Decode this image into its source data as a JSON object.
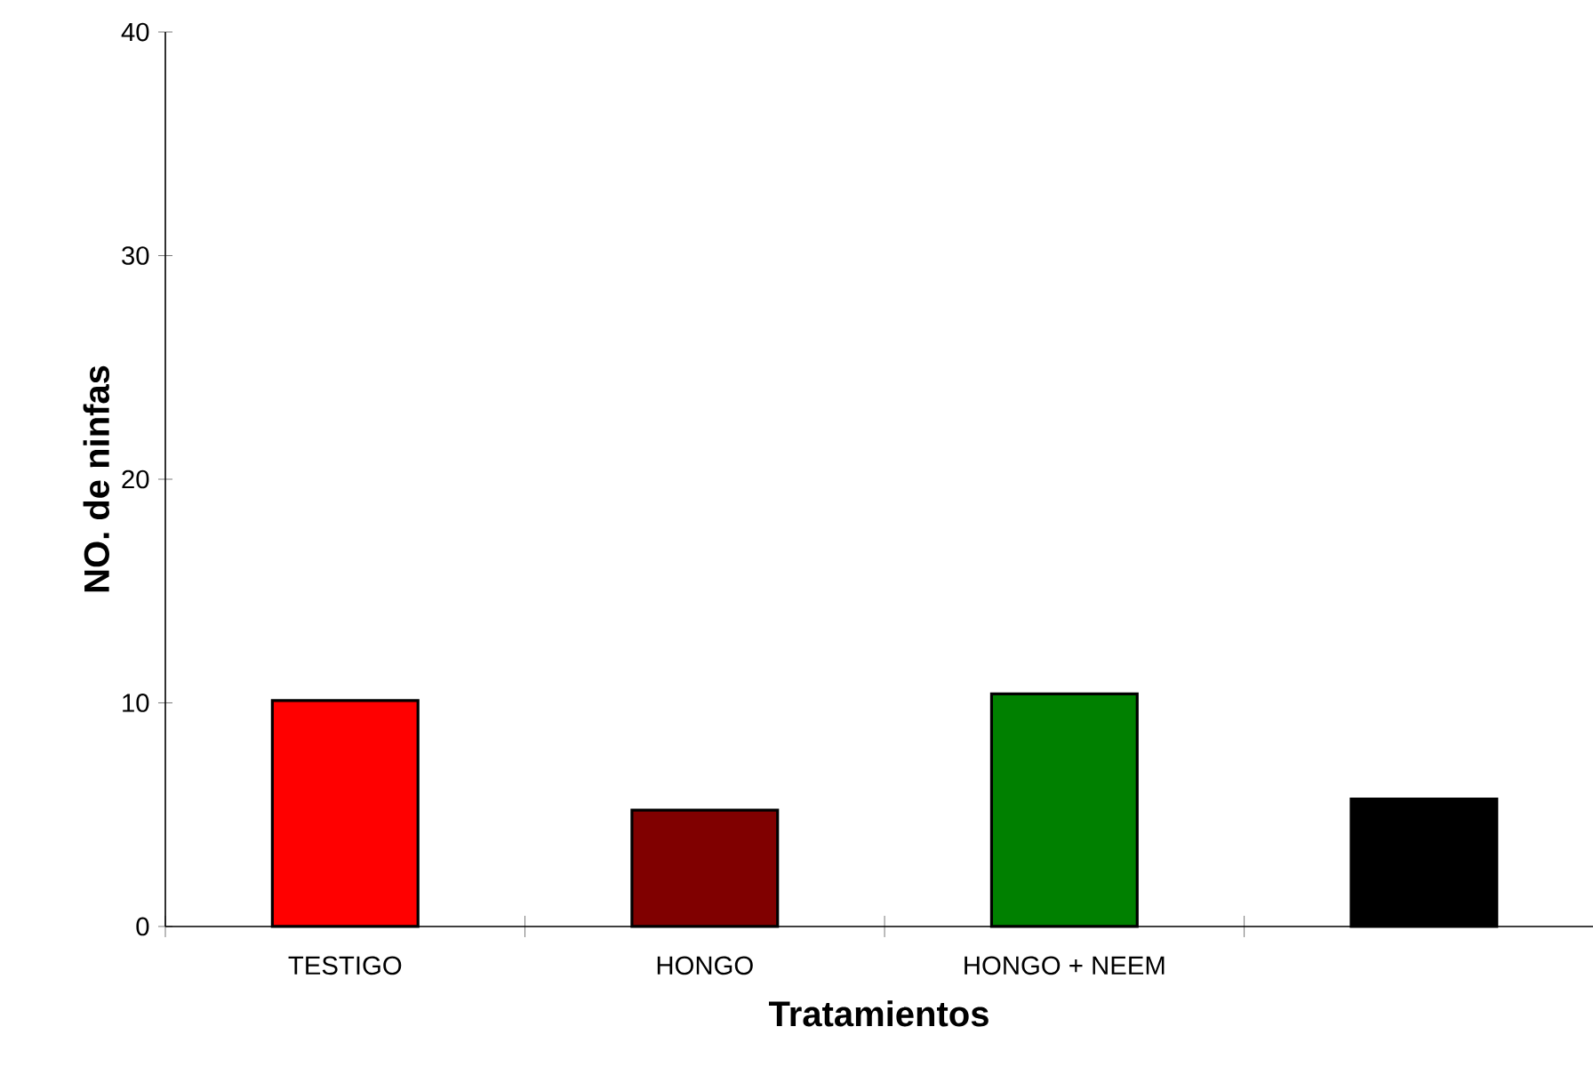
{
  "chart_data": {
    "type": "bar",
    "xlabel": "Tratamientos",
    "ylabel": "NO. de ninfas",
    "categories": [
      "TESTIGO",
      "HONGO",
      "HONGO + NEEM",
      null
    ],
    "values": [
      10.1,
      5.2,
      10.4,
      5.7
    ],
    "colors": [
      "#ff0000",
      "#800000",
      "#008000",
      "#000000"
    ],
    "ylim": [
      0,
      40
    ],
    "yticks": [
      0,
      10,
      20,
      30,
      40
    ]
  }
}
